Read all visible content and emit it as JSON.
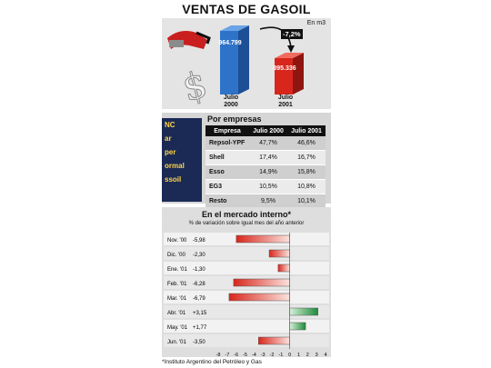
{
  "title": "VENTAS DE GASOIL",
  "top_chart": {
    "unit": "En m3",
    "change": "-7,2%",
    "bars": [
      {
        "label": "964.799",
        "year_line1": "Julio",
        "year_line2": "2000",
        "value": 964799,
        "color": "#2f73c8"
      },
      {
        "label": "895.336",
        "year_line1": "Julio",
        "year_line2": "2001",
        "value": 895336,
        "color": "#d8261c"
      }
    ]
  },
  "empresas": {
    "title": "Por empresas",
    "headers": [
      "Empresa",
      "Julio 2000",
      "Julio 2001"
    ],
    "rows": [
      [
        "Repsol-YPF",
        "47,7%",
        "46,6%"
      ],
      [
        "Shell",
        "17,4%",
        "16,7%"
      ],
      [
        "Esso",
        "14,9%",
        "15,8%"
      ],
      [
        "EG3",
        "10,5%",
        "10,8%"
      ],
      [
        "Resto",
        "9,5%",
        "10,1%"
      ]
    ],
    "photo_text": [
      "NC",
      "ar",
      "per",
      "ormal",
      "ssoil"
    ]
  },
  "chart_data": {
    "type": "bar",
    "orientation": "horizontal",
    "title": "En el mercado interno*",
    "subtitle": "% de variación sobre igual mes del año anterior",
    "categories": [
      "Nov. '00",
      "Dic. '00",
      "Ene. '01",
      "Feb. '01",
      "Mar. '01",
      "Abr. '01",
      "May. '01",
      "Jun. '01"
    ],
    "value_labels": [
      "-5,98",
      "-2,30",
      "-1,30",
      "-6,28",
      "-6,79",
      "+3,15",
      "+1,77",
      "-3,50"
    ],
    "values": [
      -5.98,
      -2.3,
      -1.3,
      -6.28,
      -6.79,
      3.15,
      1.77,
      -3.5
    ],
    "xlim": [
      -8,
      4
    ],
    "xticks": [
      "-8",
      "-7",
      "-6",
      "-5",
      "-4",
      "-3",
      "-2",
      "-1",
      "0",
      "1",
      "2",
      "3",
      "4"
    ],
    "negative_color": "#d8261c",
    "positive_color": "#1e8a3a"
  },
  "source": "*Instituto Argentino del Petróleo y Gas"
}
